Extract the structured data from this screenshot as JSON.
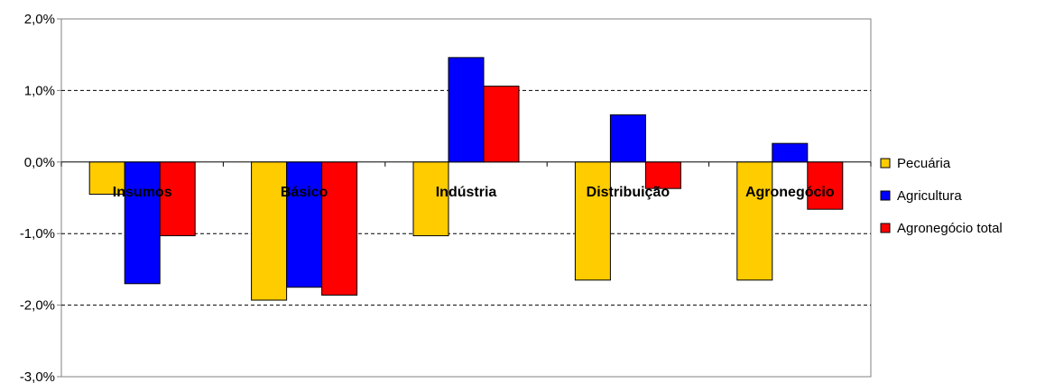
{
  "chart_data": {
    "type": "bar",
    "categories": [
      "Insumos",
      "Básico",
      "Indústria",
      "Distribuição",
      "Agronegócio"
    ],
    "series": [
      {
        "name": "Pecuária",
        "color": "#FFCC00",
        "values": [
          -0.45,
          -1.93,
          -1.03,
          -1.65,
          -1.65
        ]
      },
      {
        "name": "Agricultura",
        "color": "#0000FF",
        "values": [
          -1.7,
          -1.75,
          1.46,
          0.66,
          0.26
        ]
      },
      {
        "name": "Agronegócio total",
        "color": "#FF0000",
        "values": [
          -1.03,
          -1.86,
          1.06,
          -0.37,
          -0.66
        ]
      }
    ],
    "ylim": [
      -3.0,
      2.0
    ],
    "yticks": [
      {
        "value": 2.0,
        "label": "2,0%"
      },
      {
        "value": 1.0,
        "label": "1,0%"
      },
      {
        "value": 0.0,
        "label": "0,0%"
      },
      {
        "value": -1.0,
        "label": "-1,0%"
      },
      {
        "value": -2.0,
        "label": "-2,0%"
      },
      {
        "value": -3.0,
        "label": "-3,0%"
      }
    ],
    "grid": true,
    "legend_position": "right",
    "title": "",
    "xlabel": "",
    "ylabel": ""
  }
}
